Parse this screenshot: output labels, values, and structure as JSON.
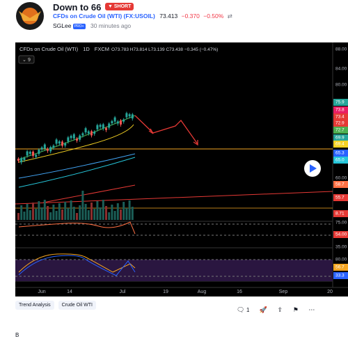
{
  "header": {
    "title": "Down to 66",
    "badge": "SHORT",
    "symbol": "CFDs on Crude Oil (WTI) (FX:USOIL)",
    "price": "73.413",
    "change": "−0.370",
    "change_pct": "−0.50%",
    "author": "SGLee",
    "author_badge": "PRO+",
    "time": "30 minutes ago"
  },
  "chart": {
    "legend": {
      "symbol": "CFDs on Crude Oil (WTI)",
      "interval": "1D",
      "source": "FXCM",
      "ohlc": "O73.783 H73.814 L73.139 C73.438 −0.345 (−0.47%)"
    },
    "indicator_input": "9",
    "price_labels": [
      "88.00",
      "84.00",
      "80.00",
      "75.9",
      "73.8",
      "73.4",
      "72.9",
      "72.7",
      "69.9",
      "69.4",
      "65.3",
      "65.0",
      "60.00",
      "58.7",
      "55.7",
      "8.71",
      "75.00",
      "54.00",
      "35.00",
      "80.00",
      "56.7",
      "33.3"
    ],
    "time_labels": [
      "Jun",
      "14",
      "Jul",
      "19",
      "Aug",
      "16",
      "Sep",
      "20"
    ]
  },
  "tags": [
    "Trend Analysis",
    "Crude Oil WTI"
  ],
  "actions": {
    "comments": "1"
  },
  "footer_text": "B"
}
